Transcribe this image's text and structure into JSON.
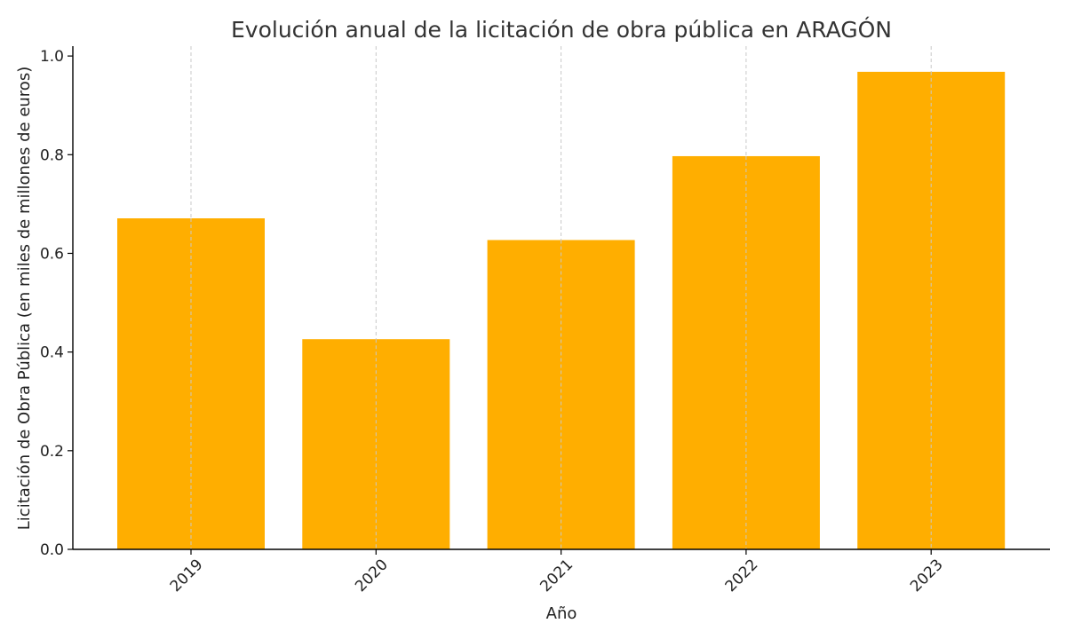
{
  "chart_data": {
    "type": "bar",
    "title": "Evolución anual de la licitación de obra pública en ARAGÓN",
    "xlabel": "Año",
    "ylabel": "Licitación de Obra Pública (en miles de millones de euros)",
    "categories": [
      "2019",
      "2020",
      "2021",
      "2022",
      "2023"
    ],
    "values": [
      0.671,
      0.426,
      0.627,
      0.797,
      0.968
    ],
    "ylim": [
      0,
      1.02
    ],
    "yticks": [
      "0.0",
      "0.2",
      "0.4",
      "0.6",
      "0.8",
      "1.0"
    ],
    "grid": "vertical-dashed",
    "colors": {
      "bar": "#ffae00"
    }
  }
}
